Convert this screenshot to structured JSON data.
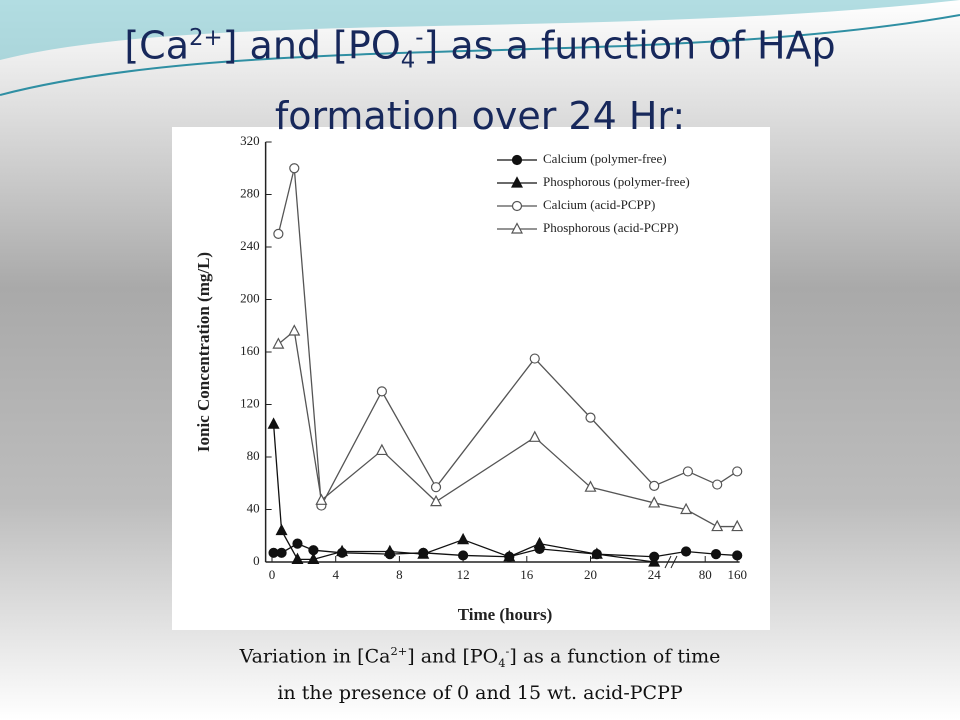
{
  "slide": {
    "title": [
      "[Ca",
      "2+",
      "] and [PO",
      "4",
      "-",
      "] as a function of HAp formation over 24 Hr:"
    ],
    "caption": [
      "Variation in [Ca",
      "2+",
      "] and [PO",
      "4",
      "-",
      "] as a function of time"
    ],
    "caption_line2": "in the presence of 0 and 15 wt. acid-PCPP"
  },
  "chart_data": {
    "type": "line",
    "xlabel": "Time (hours)",
    "ylabel": "Ionic Concentration (mg/L)",
    "xlim": [
      -0.4,
      166
    ],
    "ylim": [
      0,
      320
    ],
    "xticks": [
      0,
      4,
      8,
      12,
      16,
      20,
      24,
      80,
      160
    ],
    "yticks": [
      0,
      40,
      80,
      120,
      160,
      200,
      240,
      280,
      320
    ],
    "legend": "upper right",
    "series": [
      {
        "name": "Calcium (polymer-free)",
        "marker": "circle",
        "filled": true,
        "color": "#111111",
        "x": [
          0.1,
          0.6,
          1.6,
          2.6,
          4.4,
          7.4,
          9.5,
          12,
          14.9,
          16.8,
          20.4,
          24,
          59,
          107,
          160
        ],
        "values": [
          7,
          7,
          14,
          9,
          7,
          6,
          7,
          5,
          4,
          10,
          6,
          4,
          8,
          6,
          5
        ]
      },
      {
        "name": "Phosphorous (polymer-free)",
        "marker": "triangle",
        "filled": true,
        "color": "#111111",
        "x": [
          0.1,
          0.6,
          1.6,
          2.6,
          4.4,
          7.4,
          9.5,
          12,
          14.9,
          16.8,
          20.4,
          24
        ],
        "values": [
          105,
          24,
          2,
          2,
          8,
          8,
          6,
          17,
          4,
          14,
          6,
          0
        ]
      },
      {
        "name": "Calcium (acid-PCPP)",
        "marker": "circle",
        "filled": false,
        "color": "#555555",
        "x": [
          0.4,
          1.4,
          3.1,
          6.9,
          10.3,
          16.5,
          20,
          24,
          61,
          110,
          160
        ],
        "values": [
          250,
          300,
          43,
          130,
          57,
          155,
          110,
          58,
          69,
          59,
          69
        ]
      },
      {
        "name": "Phosphorous (acid-PCPP)",
        "marker": "triangle",
        "filled": false,
        "color": "#555555",
        "x": [
          0.4,
          1.4,
          3.1,
          6.9,
          10.3,
          16.5,
          20,
          24,
          59,
          110,
          160
        ],
        "values": [
          166,
          176,
          47,
          85,
          46,
          95,
          57,
          45,
          40,
          27,
          27
        ]
      }
    ]
  }
}
